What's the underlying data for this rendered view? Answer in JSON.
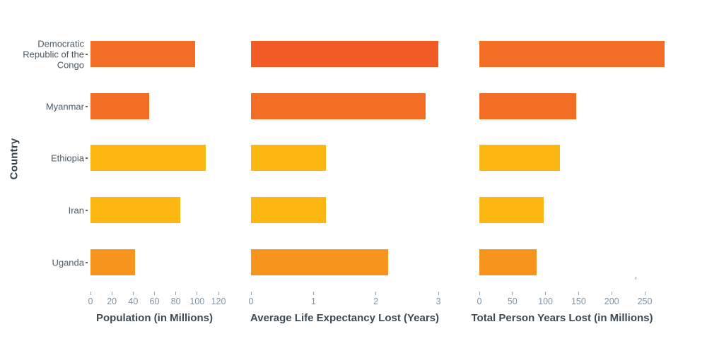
{
  "page": {
    "background": "#ffffff"
  },
  "y_axis": {
    "label": "Country",
    "categories": [
      "Democratic Republic of the Congo",
      "Myanmar",
      "Ethiopia",
      "Iran",
      "Uganda"
    ]
  },
  "chart_data": [
    {
      "type": "bar",
      "orientation": "horizontal",
      "title": "Population (in Millions)",
      "xlabel": "Population (in Millions)",
      "categories": [
        "Democratic Republic of the Congo",
        "Myanmar",
        "Ethiopia",
        "Iran",
        "Uganda"
      ],
      "values": [
        98,
        55,
        108,
        84,
        42
      ],
      "colors": [
        "#F26E24",
        "#F26E24",
        "#FDB713",
        "#FDB713",
        "#F7941E"
      ],
      "xlim": [
        0,
        120
      ],
      "xticks": [
        0,
        20,
        40,
        60,
        80,
        100,
        120
      ],
      "grid": false,
      "legend": "none"
    },
    {
      "type": "bar",
      "orientation": "horizontal",
      "title": "Average Life Expectancy Lost (Years)",
      "xlabel": "Average Life Expectancy Lost (Years)",
      "categories": [
        "Democratic Republic of the Congo",
        "Myanmar",
        "Ethiopia",
        "Iran",
        "Uganda"
      ],
      "values": [
        3.0,
        2.8,
        1.2,
        1.2,
        2.2
      ],
      "colors": [
        "#F15B25",
        "#F26E24",
        "#FDB713",
        "#FDB713",
        "#F7941E"
      ],
      "xlim": [
        0,
        3
      ],
      "xticks": [
        0,
        1,
        2,
        3
      ],
      "grid": false,
      "legend": "none"
    },
    {
      "type": "bar",
      "orientation": "horizontal",
      "title": "Total Person Years Lost (in Millions)",
      "xlabel": "Total Person Years Lost (in Millions)",
      "categories": [
        "Democratic Republic of the Congo",
        "Myanmar",
        "Ethiopia",
        "Iran",
        "Uganda"
      ],
      "values": [
        280,
        146,
        122,
        97,
        87
      ],
      "colors": [
        "#F26E24",
        "#F26E24",
        "#FDB713",
        "#FDB713",
        "#F7941E"
      ],
      "xlim": [
        0,
        250
      ],
      "xticks": [
        0,
        50,
        100,
        150,
        200,
        250
      ],
      "grid": false,
      "legend": "none"
    }
  ],
  "palette": {
    "hot": "#F15B25",
    "orange": "#F26E24",
    "mid_orange": "#F7941E",
    "amber": "#FDB713",
    "axis_text": "#8292a0",
    "label_text": "#4c5a66",
    "title_text": "#3c4a56"
  }
}
